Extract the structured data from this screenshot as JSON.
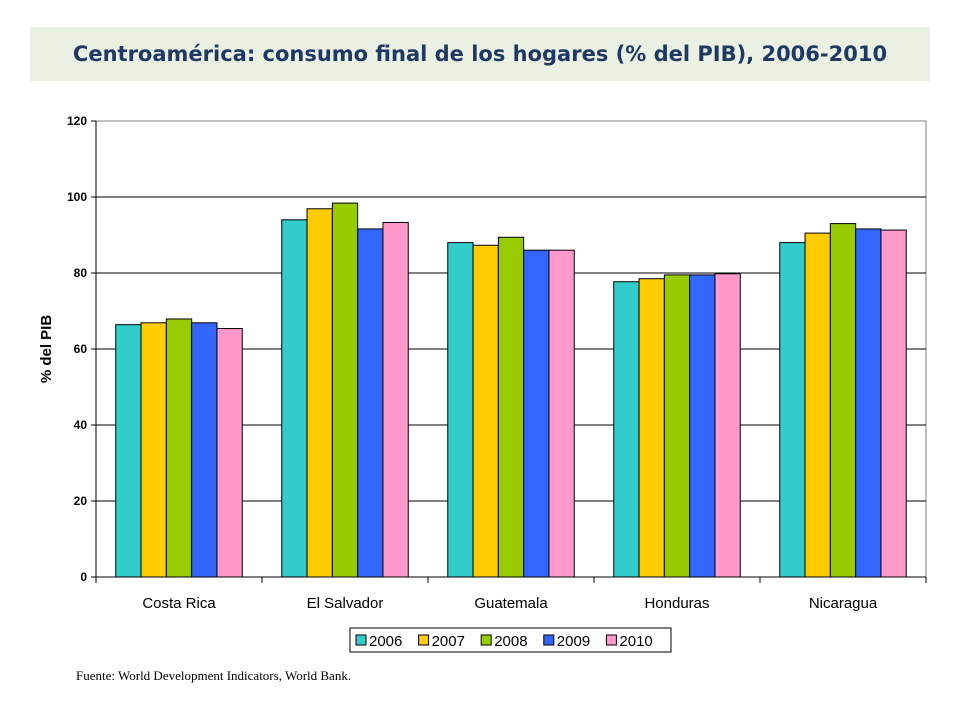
{
  "header": {
    "title": "Centroamérica: consumo final de los hogares (% del PIB), 2006-2010"
  },
  "source_note": "Fuente: World Development Indicators, World Bank.",
  "chart_data": {
    "type": "bar",
    "title": "Centroamérica: consumo final de los hogares (% del PIB), 2006-2010",
    "xlabel": "",
    "ylabel": "% del PIB",
    "ylim": [
      0,
      120
    ],
    "yticks": [
      0,
      20,
      40,
      60,
      80,
      100,
      120
    ],
    "grid": true,
    "legend_position": "bottom",
    "categories": [
      "Costa Rica",
      "El Salvador",
      "Guatemala",
      "Honduras",
      "Nicaragua"
    ],
    "series": [
      {
        "name": "2006",
        "color": "#33cccc",
        "values": [
          66.4,
          94.0,
          88.0,
          77.7,
          88.0
        ]
      },
      {
        "name": "2007",
        "color": "#ffcc00",
        "values": [
          66.9,
          96.9,
          87.3,
          78.5,
          90.5
        ]
      },
      {
        "name": "2008",
        "color": "#99cc00",
        "values": [
          67.9,
          98.4,
          89.4,
          79.5,
          93.0
        ]
      },
      {
        "name": "2009",
        "color": "#3366ff",
        "values": [
          66.9,
          91.6,
          86.0,
          79.5,
          91.6
        ]
      },
      {
        "name": "2010",
        "color": "#ff99cc",
        "values": [
          65.4,
          93.3,
          86.0,
          79.8,
          91.3
        ]
      }
    ]
  }
}
